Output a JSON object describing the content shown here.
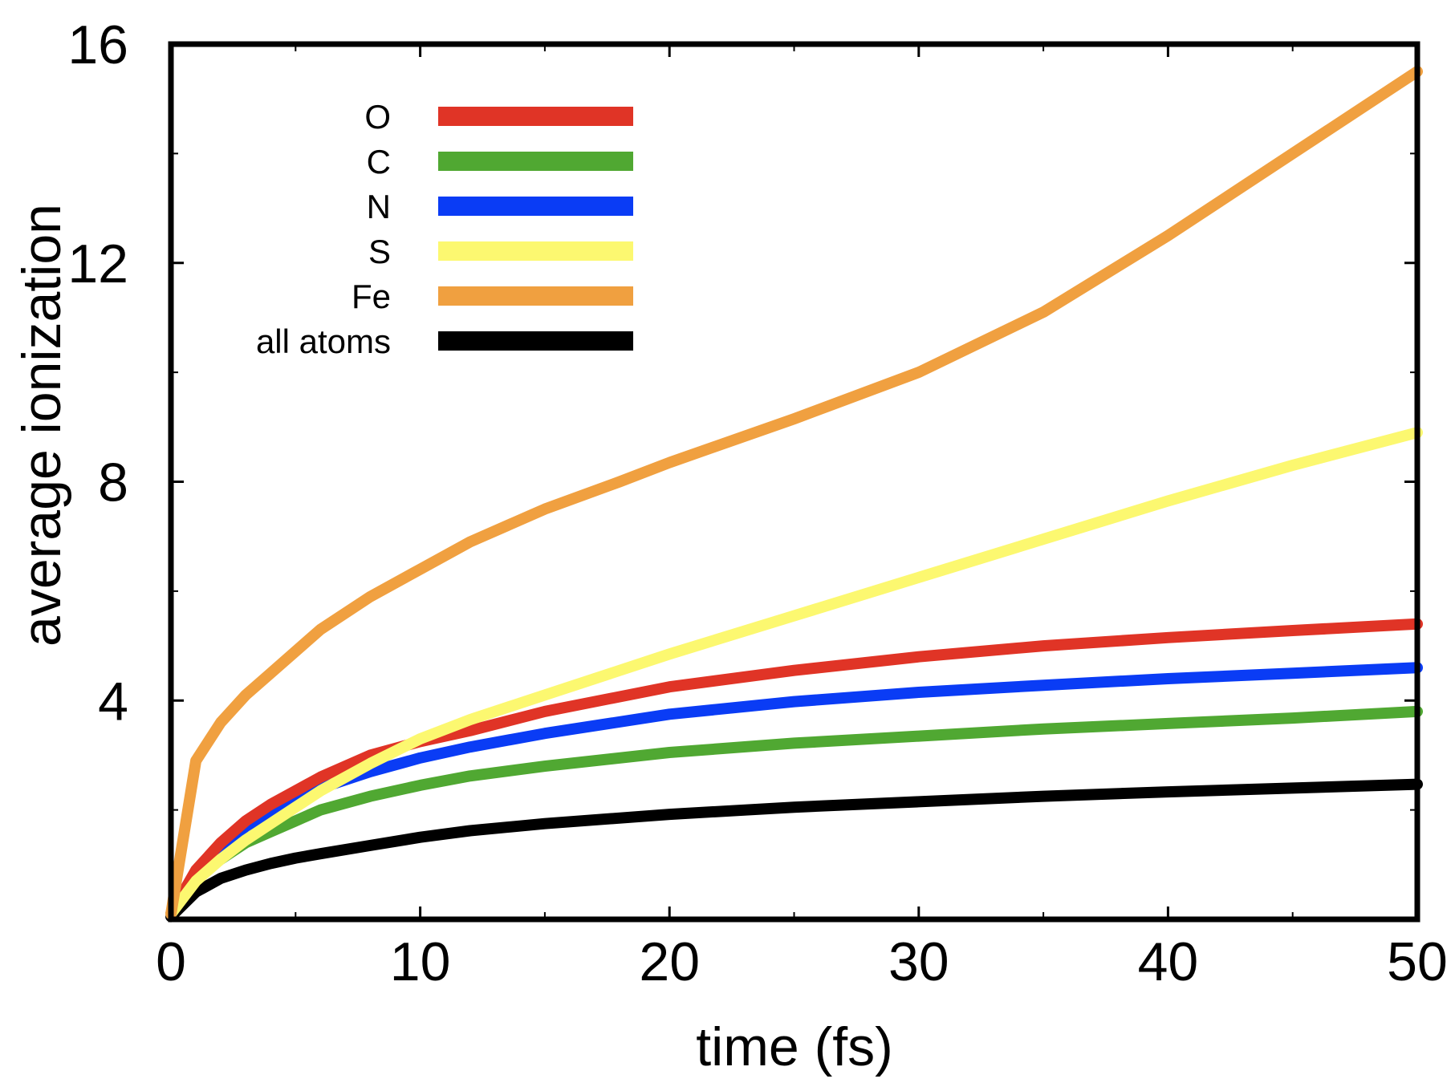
{
  "chart_data": {
    "type": "line",
    "title": "",
    "xlabel": "time (fs)",
    "ylabel": "average ionization",
    "xlim": [
      0,
      50
    ],
    "ylim": [
      0,
      16
    ],
    "xticks": [
      0,
      10,
      20,
      30,
      40,
      50
    ],
    "yticks": [
      4,
      8,
      12,
      16
    ],
    "x_tick_labels": [
      "0",
      "10",
      "20",
      "30",
      "40",
      "50"
    ],
    "y_tick_labels": [
      "4",
      "8",
      "12",
      "16"
    ],
    "grid": false,
    "legend_position": "top-left",
    "series": [
      {
        "name": "O",
        "color": "#e03426",
        "x": [
          0,
          1,
          2,
          3,
          4,
          5,
          6,
          8,
          10,
          12,
          15,
          20,
          25,
          30,
          35,
          40,
          45,
          50
        ],
        "y": [
          0.1,
          0.9,
          1.4,
          1.8,
          2.1,
          2.35,
          2.6,
          3.0,
          3.25,
          3.45,
          3.8,
          4.25,
          4.55,
          4.8,
          5.0,
          5.15,
          5.28,
          5.4
        ]
      },
      {
        "name": "C",
        "color": "#50a832",
        "x": [
          0,
          1,
          2,
          3,
          4,
          5,
          6,
          8,
          10,
          12,
          15,
          20,
          25,
          30,
          35,
          40,
          45,
          50
        ],
        "y": [
          0.1,
          0.75,
          1.1,
          1.4,
          1.6,
          1.8,
          2.0,
          2.25,
          2.45,
          2.62,
          2.8,
          3.05,
          3.22,
          3.35,
          3.48,
          3.58,
          3.68,
          3.8
        ]
      },
      {
        "name": "N",
        "color": "#0a3cf5",
        "x": [
          0,
          1,
          2,
          3,
          4,
          5,
          6,
          8,
          10,
          12,
          15,
          20,
          25,
          30,
          35,
          40,
          45,
          50
        ],
        "y": [
          0.1,
          0.85,
          1.3,
          1.7,
          1.95,
          2.2,
          2.4,
          2.7,
          2.95,
          3.15,
          3.4,
          3.75,
          3.98,
          4.15,
          4.28,
          4.4,
          4.5,
          4.6
        ]
      },
      {
        "name": "S",
        "color": "#fcf870",
        "x": [
          0,
          1,
          2,
          3,
          4,
          5,
          6,
          8,
          10,
          12,
          15,
          20,
          25,
          30,
          35,
          40,
          45,
          50
        ],
        "y": [
          0.1,
          0.7,
          1.1,
          1.45,
          1.75,
          2.05,
          2.35,
          2.85,
          3.3,
          3.65,
          4.1,
          4.85,
          5.55,
          6.25,
          6.95,
          7.65,
          8.3,
          8.9
        ]
      },
      {
        "name": "Fe",
        "color": "#f0a040",
        "x": [
          0,
          1,
          2,
          3,
          4,
          6,
          8,
          10,
          12,
          15,
          18,
          20,
          25,
          30,
          35,
          40,
          45,
          50
        ],
        "y": [
          0.1,
          2.9,
          3.6,
          4.1,
          4.5,
          5.3,
          5.9,
          6.4,
          6.9,
          7.5,
          8.0,
          8.35,
          9.15,
          10.0,
          11.1,
          12.5,
          14.0,
          15.5
        ]
      },
      {
        "name": "all atoms",
        "color": "#000000",
        "x": [
          0,
          1,
          2,
          3,
          4,
          5,
          6,
          8,
          10,
          12,
          15,
          20,
          25,
          30,
          35,
          40,
          45,
          50
        ],
        "y": [
          0.05,
          0.5,
          0.75,
          0.9,
          1.02,
          1.12,
          1.2,
          1.35,
          1.5,
          1.62,
          1.75,
          1.92,
          2.05,
          2.15,
          2.25,
          2.33,
          2.4,
          2.47
        ]
      }
    ]
  }
}
